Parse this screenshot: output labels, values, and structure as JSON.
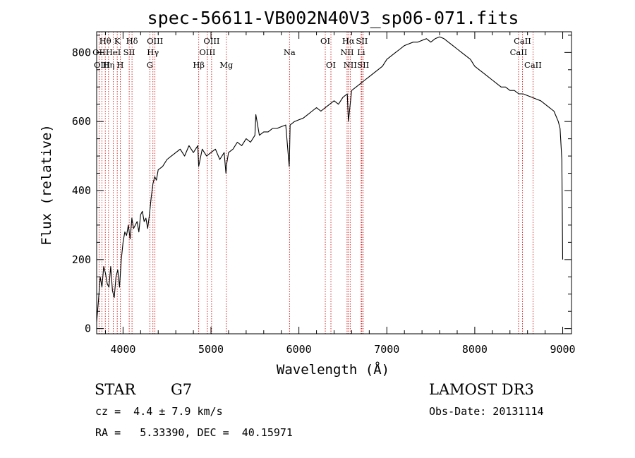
{
  "chart_data": {
    "type": "line",
    "title": "spec-56611-VB002N40V3_sp06-071.fits",
    "xlabel": "Wavelength (Å)",
    "ylabel": "Flux (relative)",
    "xlim": [
      3700,
      9100
    ],
    "ylim": [
      -15,
      860
    ],
    "x_ticks": [
      4000,
      5000,
      6000,
      7000,
      8000,
      9000
    ],
    "x_tick_labels": [
      "4000",
      "5000",
      "6000",
      "7000",
      "8000",
      "9000"
    ],
    "y_ticks": [
      0,
      200,
      400,
      600,
      800
    ],
    "y_tick_labels": [
      "0",
      "200",
      "400",
      "600",
      "800"
    ],
    "series": [
      {
        "name": "flux",
        "x": [
          3700,
          3720,
          3740,
          3760,
          3780,
          3800,
          3820,
          3840,
          3860,
          3880,
          3900,
          3920,
          3940,
          3960,
          3980,
          4000,
          4020,
          4040,
          4060,
          4080,
          4100,
          4120,
          4140,
          4160,
          4180,
          4200,
          4220,
          4240,
          4260,
          4280,
          4300,
          4320,
          4340,
          4360,
          4380,
          4400,
          4450,
          4500,
          4550,
          4600,
          4650,
          4700,
          4750,
          4800,
          4850,
          4860,
          4900,
          4950,
          5000,
          5050,
          5100,
          5150,
          5170,
          5180,
          5200,
          5250,
          5300,
          5350,
          5400,
          5450,
          5500,
          5510,
          5550,
          5600,
          5650,
          5700,
          5750,
          5800,
          5850,
          5890,
          5893,
          5900,
          5950,
          6000,
          6050,
          6100,
          6150,
          6200,
          6250,
          6300,
          6350,
          6400,
          6450,
          6500,
          6550,
          6563,
          6600,
          6650,
          6700,
          6750,
          6800,
          6850,
          6900,
          6950,
          7000,
          7050,
          7100,
          7150,
          7200,
          7250,
          7300,
          7350,
          7400,
          7450,
          7500,
          7550,
          7600,
          7650,
          7700,
          7750,
          7800,
          7850,
          7900,
          7950,
          8000,
          8050,
          8100,
          8150,
          8200,
          8250,
          8300,
          8350,
          8400,
          8450,
          8500,
          8550,
          8600,
          8650,
          8700,
          8750,
          8800,
          8850,
          8900,
          8950,
          8970,
          8990,
          9000
        ],
        "y": [
          20,
          80,
          150,
          120,
          180,
          160,
          130,
          120,
          180,
          110,
          90,
          150,
          170,
          120,
          200,
          250,
          280,
          270,
          300,
          260,
          320,
          290,
          300,
          310,
          280,
          330,
          340,
          310,
          320,
          290,
          330,
          380,
          420,
          440,
          430,
          460,
          470,
          490,
          500,
          510,
          520,
          500,
          530,
          510,
          530,
          470,
          520,
          500,
          510,
          520,
          490,
          510,
          450,
          480,
          510,
          520,
          540,
          530,
          550,
          540,
          560,
          620,
          560,
          570,
          570,
          580,
          580,
          585,
          590,
          470,
          500,
          590,
          600,
          605,
          610,
          620,
          630,
          640,
          630,
          640,
          650,
          660,
          650,
          670,
          680,
          600,
          690,
          700,
          710,
          720,
          730,
          740,
          750,
          760,
          780,
          790,
          800,
          810,
          820,
          825,
          830,
          830,
          835,
          840,
          830,
          840,
          845,
          840,
          830,
          820,
          810,
          800,
          790,
          780,
          760,
          750,
          740,
          730,
          720,
          710,
          700,
          700,
          690,
          690,
          680,
          680,
          675,
          670,
          665,
          660,
          650,
          640,
          630,
          600,
          580,
          490,
          200
        ]
      }
    ],
    "lines": [
      {
        "label": "Hθ",
        "x": 3798,
        "row": 1
      },
      {
        "label": "OII",
        "x": 3727,
        "row": 2
      },
      {
        "label": "OIII",
        "x": 3760,
        "row": 3
      },
      {
        "label": "Hη",
        "x": 3835,
        "row": 3
      },
      {
        "label": "HeI",
        "x": 3889,
        "row": 2
      },
      {
        "label": "K",
        "x": 3934,
        "row": 1
      },
      {
        "label": "H",
        "x": 3968,
        "row": 3
      },
      {
        "label": "SII",
        "x": 4070,
        "row": 2
      },
      {
        "label": "Hδ",
        "x": 4102,
        "row": 1
      },
      {
        "label": "OIII",
        "x": 4363,
        "row": 1
      },
      {
        "label": "Hγ",
        "x": 4340,
        "row": 2
      },
      {
        "label": "G",
        "x": 4305,
        "row": 3
      },
      {
        "label": "Hβ",
        "x": 4861,
        "row": 3
      },
      {
        "label": "OIII",
        "x": 5007,
        "row": 1
      },
      {
        "label": "OIII",
        "x": 4959,
        "row": 2
      },
      {
        "label": "Mg",
        "x": 5175,
        "row": 3
      },
      {
        "label": "Na",
        "x": 5893,
        "row": 2
      },
      {
        "label": "OI",
        "x": 6300,
        "row": 1
      },
      {
        "label": "OI",
        "x": 6364,
        "row": 3
      },
      {
        "label": "Hα",
        "x": 6563,
        "row": 1
      },
      {
        "label": "NII",
        "x": 6548,
        "row": 2
      },
      {
        "label": "NII",
        "x": 6583,
        "row": 3
      },
      {
        "label": "SII",
        "x": 6716,
        "row": 1
      },
      {
        "label": "Li",
        "x": 6708,
        "row": 2
      },
      {
        "label": "SII",
        "x": 6731,
        "row": 3
      },
      {
        "label": "CaII",
        "x": 8542,
        "row": 1
      },
      {
        "label": "CaII",
        "x": 8498,
        "row": 2
      },
      {
        "label": "CaII",
        "x": 8662,
        "row": 3
      }
    ]
  },
  "info": {
    "object_class": "STAR",
    "subclass": "G7",
    "survey": "LAMOST DR3",
    "redshift": "cz =  4.4 ± 7.9 km/s",
    "obs_date": "Obs-Date: 20131114",
    "coords": "RA =   5.33390, DEC =  40.15971"
  },
  "colors": {
    "axis": "#000000",
    "spectrum": "#000000",
    "line_marker": "#cc0000"
  }
}
